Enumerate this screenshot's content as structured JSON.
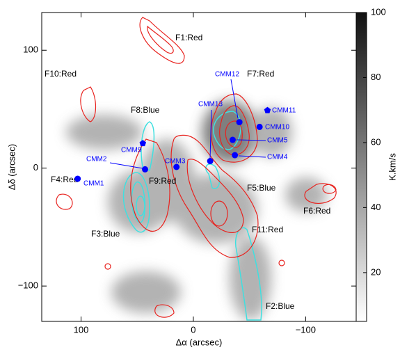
{
  "chart_data": {
    "type": "scatter",
    "xlabel": "Δα (arcsec)",
    "ylabel": "Δδ (arcsec)",
    "xlim": [
      135,
      -145
    ],
    "ylim": [
      -130,
      132
    ],
    "xticks": [
      100,
      0,
      {
        "value": -100,
        "label": "−100"
      }
    ],
    "yticks": [
      100,
      0,
      {
        "value": -100,
        "label": "−100"
      }
    ],
    "colorbar": {
      "label": "K.km/s",
      "lim": [
        5,
        100
      ],
      "ticks": [
        20,
        40,
        60,
        80,
        100
      ]
    },
    "marker_color": "#0000ff",
    "points": [
      {
        "label": "CMM1",
        "x": 103,
        "y": -9,
        "shape": "circle"
      },
      {
        "label": "CMM2",
        "x": 43,
        "y": -1,
        "shape": "circle"
      },
      {
        "label": "CMM9",
        "x": 45,
        "y": 21,
        "shape": "pentagon"
      },
      {
        "label": "CMM3",
        "x": 15,
        "y": 1,
        "shape": "circle"
      },
      {
        "label": "CMM13",
        "x": -15,
        "y": 6,
        "shape": "circle"
      },
      {
        "label": "CMM12",
        "x": -41,
        "y": 39,
        "shape": "circle"
      },
      {
        "label": "CMM11",
        "x": -66,
        "y": 49,
        "shape": "pentagon"
      },
      {
        "label": "CMM10",
        "x": -59,
        "y": 35,
        "shape": "circle"
      },
      {
        "label": "CMM5",
        "x": -35,
        "y": 24,
        "shape": "circle"
      },
      {
        "label": "CMM4",
        "x": -37,
        "y": 11,
        "shape": "circle"
      }
    ],
    "annotations": [
      "F1:Red",
      "F10:Red",
      "F7:Red",
      "F8:Blue",
      "F4:Red",
      "F9:Red",
      "F5:Blue",
      "F6:Red",
      "F3:Blue",
      "F11:Red",
      "F2:Blue"
    ]
  }
}
